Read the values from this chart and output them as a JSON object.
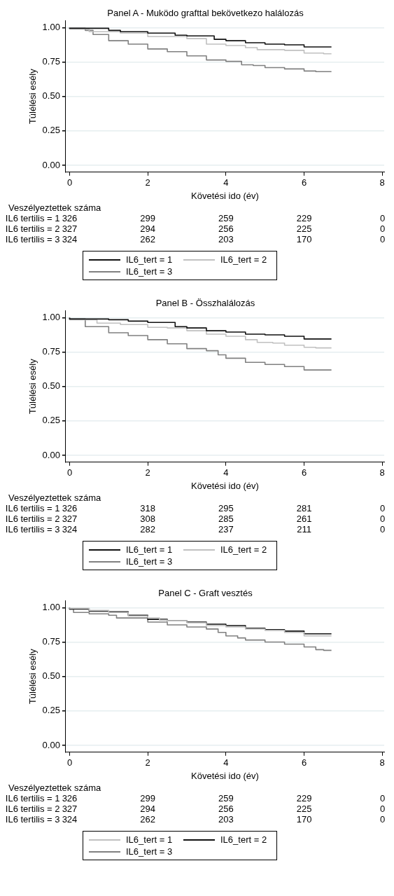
{
  "chart_data": [
    {
      "type": "step",
      "title": "Panel A - Muködo grafttal bekövetkezo halálozás",
      "xlabel": "Követési ido (év)",
      "ylabel": "Túlélési esély",
      "xlim": [
        -0.1,
        8.05
      ],
      "xticks": [
        0,
        2,
        4,
        6,
        8
      ],
      "ylim": [
        -0.05,
        1.05
      ],
      "yticks": [
        {
          "value": 0,
          "label": "0.00"
        },
        {
          "value": 0.25,
          "label": "0.25"
        },
        {
          "value": 0.5,
          "label": "0.50"
        },
        {
          "value": 0.75,
          "label": "0.75"
        },
        {
          "value": 1,
          "label": "1.00"
        }
      ],
      "grid": "y",
      "legend": "bottom",
      "annotations": [
        "Veszélyeztettek száma",
        "IL6 tertilis = 1",
        "326",
        "299",
        "259",
        "229",
        "0",
        "IL6 tertilis = 2",
        "327",
        "294",
        "256",
        "225",
        "0",
        "IL6 tertilis = 3",
        "324",
        "262",
        "203",
        "170",
        "0"
      ],
      "series": [
        {
          "name": "IL6_tert = 1",
          "color": "#111111",
          "x": [
            0,
            1,
            1.3,
            2,
            2.7,
            3,
            3.7,
            4,
            4.5,
            5,
            5.5,
            6,
            6.4,
            6.7
          ],
          "values": [
            1,
            0.995,
            0.98,
            0.97,
            0.96,
            0.945,
            0.94,
            0.915,
            0.905,
            0.89,
            0.88,
            0.875,
            0.86,
            0.86
          ]
        },
        {
          "name": "IL6_tert = 2",
          "color": "#c0c0c0",
          "x": [
            0,
            0.5,
            1.3,
            2,
            3,
            3.5,
            4,
            4.5,
            4.8,
            5.5,
            6,
            6.5,
            6.7
          ],
          "values": [
            1,
            0.99,
            0.97,
            0.96,
            0.935,
            0.92,
            0.88,
            0.87,
            0.855,
            0.84,
            0.835,
            0.815,
            0.81
          ]
        },
        {
          "name": "IL6_tert = 3",
          "color": "#808080",
          "x": [
            0,
            0.4,
            0.6,
            1,
            1.5,
            2,
            2.5,
            3,
            3.5,
            4,
            4.4,
            4.7,
            5,
            5.5,
            6,
            6.3,
            6.7
          ],
          "values": [
            1,
            0.995,
            0.98,
            0.95,
            0.905,
            0.88,
            0.845,
            0.825,
            0.795,
            0.765,
            0.755,
            0.73,
            0.725,
            0.71,
            0.7,
            0.685,
            0.68
          ]
        }
      ]
    },
    {
      "type": "step",
      "title": "Panel B - Összhalálozás",
      "xlabel": "Követési ido (év)",
      "ylabel": "Túlélési esély",
      "xlim": [
        -0.1,
        8.05
      ],
      "xticks": [
        0,
        2,
        4,
        6,
        8
      ],
      "ylim": [
        -0.05,
        1.05
      ],
      "yticks": [
        {
          "value": 0,
          "label": "0.00"
        },
        {
          "value": 0.25,
          "label": "0.25"
        },
        {
          "value": 0.5,
          "label": "0.50"
        },
        {
          "value": 0.75,
          "label": "0.75"
        },
        {
          "value": 1,
          "label": "1.00"
        }
      ],
      "grid": "y",
      "legend": "bottom",
      "annotations": [
        "Veszélyeztettek száma",
        "IL6 tertilis = 1",
        "326",
        "318",
        "295",
        "281",
        "0",
        "IL6 tertilis = 2",
        "327",
        "308",
        "285",
        "261",
        "0",
        "IL6 tertilis = 3",
        "324",
        "282",
        "237",
        "211",
        "0"
      ],
      "series": [
        {
          "name": "IL6_tert = 1",
          "color": "#111111",
          "x": [
            0,
            1,
            1.5,
            2,
            2.7,
            3,
            3.5,
            4,
            4.5,
            5,
            5.5,
            6,
            6.4,
            6.7
          ],
          "values": [
            1,
            0.99,
            0.985,
            0.975,
            0.965,
            0.935,
            0.925,
            0.905,
            0.895,
            0.88,
            0.875,
            0.865,
            0.845,
            0.845
          ]
        },
        {
          "name": "IL6_tert = 2",
          "color": "#c0c0c0",
          "x": [
            0,
            0.7,
            1.3,
            2,
            2.5,
            3,
            3.5,
            4,
            4.5,
            4.8,
            5.2,
            5.5,
            6,
            6.3,
            6.7
          ],
          "values": [
            1,
            0.985,
            0.96,
            0.95,
            0.93,
            0.925,
            0.905,
            0.88,
            0.865,
            0.84,
            0.82,
            0.815,
            0.8,
            0.785,
            0.78
          ]
        },
        {
          "name": "IL6_tert = 3",
          "color": "#808080",
          "x": [
            0,
            0.4,
            1,
            1.5,
            2,
            2.5,
            3,
            3.5,
            3.8,
            4,
            4.5,
            5,
            5.5,
            6,
            6.4,
            6.7
          ],
          "values": [
            1,
            0.99,
            0.935,
            0.89,
            0.87,
            0.84,
            0.81,
            0.775,
            0.76,
            0.73,
            0.705,
            0.675,
            0.66,
            0.645,
            0.62,
            0.62
          ]
        }
      ]
    },
    {
      "type": "step",
      "title": "Panel C - Graft vesztés",
      "xlabel": "Követési ido (év)",
      "ylabel": "Túlélési esély",
      "xlim": [
        -0.1,
        8.05
      ],
      "xticks": [
        0,
        2,
        4,
        6,
        8
      ],
      "ylim": [
        -0.05,
        1.05
      ],
      "yticks": [
        {
          "value": 0,
          "label": "0.00"
        },
        {
          "value": 0.25,
          "label": "0.25"
        },
        {
          "value": 0.5,
          "label": "0.50"
        },
        {
          "value": 0.75,
          "label": "0.75"
        },
        {
          "value": 1,
          "label": "1.00"
        }
      ],
      "grid": "y",
      "legend": "bottom",
      "annotations": [
        "Veszélyeztettek száma",
        "IL6 tertilis = 1",
        "326",
        "299",
        "259",
        "229",
        "0",
        "IL6 tertilis = 2",
        "327",
        "294",
        "256",
        "225",
        "0",
        "IL6 tertilis = 3",
        "324",
        "262",
        "203",
        "170",
        "0"
      ],
      "series": [
        {
          "name": "IL6_tert = 1",
          "color": "#c0c0c0",
          "x": [
            0,
            0.5,
            1,
            1.5,
            2,
            2.3,
            2.5,
            3,
            3.5,
            4,
            4.5,
            5,
            5.5,
            6,
            6.4,
            6.7
          ],
          "values": [
            1,
            0.995,
            0.98,
            0.965,
            0.94,
            0.925,
            0.91,
            0.905,
            0.89,
            0.87,
            0.86,
            0.845,
            0.835,
            0.82,
            0.795,
            0.795
          ]
        },
        {
          "name": "IL6_tert = 2",
          "color": "#111111",
          "x": [
            0,
            0.5,
            1,
            1.5,
            2,
            2.5,
            3,
            3.5,
            4,
            4.5,
            5,
            5.5,
            6,
            6.4,
            6.7
          ],
          "values": [
            1,
            0.99,
            0.975,
            0.97,
            0.945,
            0.915,
            0.905,
            0.895,
            0.88,
            0.87,
            0.85,
            0.84,
            0.83,
            0.81,
            0.81
          ]
        },
        {
          "name": "IL6_tert = 3",
          "color": "#808080",
          "x": [
            0,
            0.1,
            0.5,
            1,
            1.2,
            2,
            2.5,
            3,
            3.5,
            3.8,
            4,
            4.3,
            4.5,
            5,
            5.5,
            6,
            6.3,
            6.5,
            6.7
          ],
          "values": [
            1,
            0.99,
            0.965,
            0.955,
            0.945,
            0.925,
            0.895,
            0.875,
            0.86,
            0.845,
            0.82,
            0.795,
            0.78,
            0.765,
            0.75,
            0.735,
            0.715,
            0.695,
            0.69
          ]
        }
      ]
    }
  ]
}
